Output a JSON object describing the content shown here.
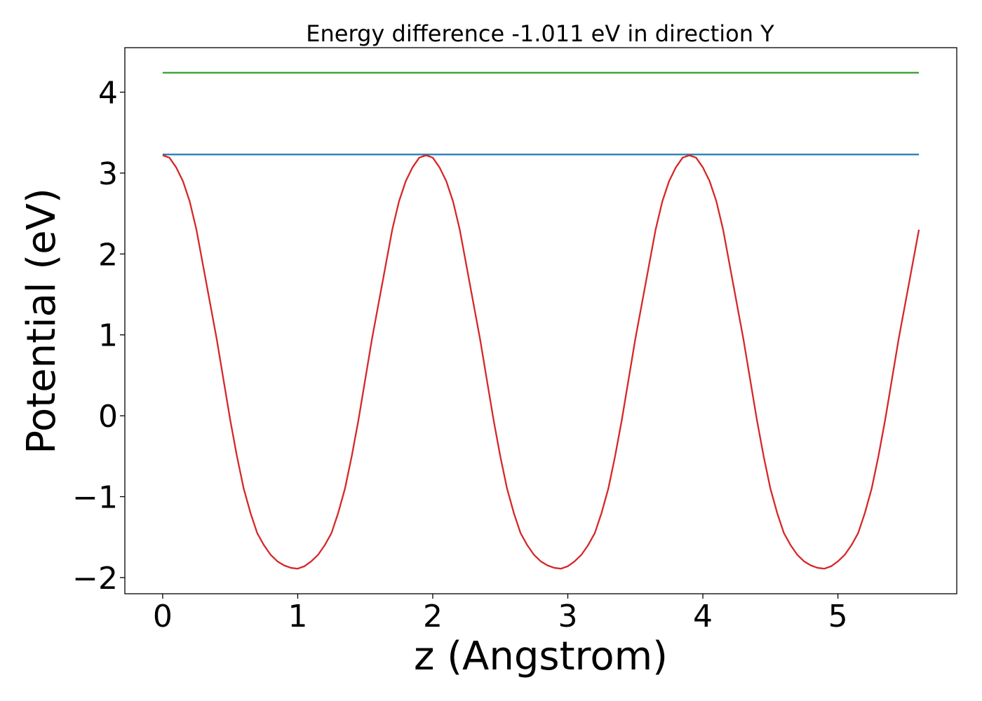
{
  "chart_data": {
    "type": "line",
    "title": "Energy difference -1.011 eV in direction Y",
    "xlabel": "z (Angstrom)",
    "ylabel": "Potential (eV)",
    "xlim": [
      -0.28,
      5.88
    ],
    "ylim": [
      -2.2,
      4.55
    ],
    "xticks": [
      0,
      1,
      2,
      3,
      4,
      5
    ],
    "yticks": [
      -2,
      -1,
      0,
      1,
      2,
      3,
      4
    ],
    "xtick_labels": [
      "0",
      "1",
      "2",
      "3",
      "4",
      "5"
    ],
    "ytick_labels": [
      "−2",
      "−1",
      "0",
      "1",
      "2",
      "3",
      "4"
    ],
    "grid": false,
    "series": [
      {
        "color": "#2ca02c",
        "x": [
          0,
          5.6
        ],
        "y": [
          4.24,
          4.24
        ]
      },
      {
        "color": "#1f77b4",
        "x": [
          0,
          5.6
        ],
        "y": [
          3.23,
          3.23
        ]
      },
      {
        "color": "#d62728",
        "x": [
          0,
          0.05,
          0.1,
          0.15,
          0.2,
          0.25,
          0.3,
          0.35,
          0.4,
          0.45,
          0.5,
          0.55,
          0.6,
          0.65,
          0.7,
          0.75,
          0.8,
          0.85,
          0.9,
          0.95,
          1.0,
          1.05,
          1.1,
          1.15,
          1.2,
          1.25,
          1.3,
          1.35,
          1.4,
          1.45,
          1.5,
          1.55,
          1.6,
          1.65,
          1.7,
          1.75,
          1.8,
          1.85,
          1.9,
          1.95,
          2.0,
          2.05,
          2.1,
          2.15,
          2.2,
          2.25,
          2.3,
          2.35,
          2.4,
          2.45,
          2.5,
          2.55,
          2.6,
          2.65,
          2.7,
          2.75,
          2.8,
          2.85,
          2.9,
          2.95,
          3.0,
          3.05,
          3.1,
          3.15,
          3.2,
          3.25,
          3.3,
          3.35,
          3.4,
          3.45,
          3.5,
          3.55,
          3.6,
          3.65,
          3.7,
          3.75,
          3.8,
          3.85,
          3.9,
          3.95,
          4.0,
          4.05,
          4.1,
          4.15,
          4.2,
          4.25,
          4.3,
          4.35,
          4.4,
          4.45,
          4.5,
          4.55,
          4.6,
          4.65,
          4.7,
          4.75,
          4.8,
          4.85,
          4.9,
          4.95,
          5.0,
          5.05,
          5.1,
          5.15,
          5.2,
          5.25,
          5.3,
          5.35,
          5.4,
          5.45,
          5.5,
          5.55,
          5.6
        ],
        "y": [
          3.22,
          3.19,
          3.07,
          2.9,
          2.65,
          2.3,
          1.85,
          1.4,
          0.95,
          0.45,
          -0.05,
          -0.5,
          -0.9,
          -1.2,
          -1.45,
          -1.6,
          -1.72,
          -1.8,
          -1.85,
          -1.88,
          -1.89,
          -1.86,
          -1.8,
          -1.72,
          -1.6,
          -1.45,
          -1.2,
          -0.9,
          -0.5,
          -0.05,
          0.45,
          0.95,
          1.4,
          1.85,
          2.3,
          2.65,
          2.9,
          3.07,
          3.19,
          3.22,
          3.19,
          3.07,
          2.9,
          2.65,
          2.3,
          1.85,
          1.4,
          0.95,
          0.45,
          -0.05,
          -0.5,
          -0.9,
          -1.2,
          -1.45,
          -1.6,
          -1.72,
          -1.8,
          -1.85,
          -1.88,
          -1.89,
          -1.86,
          -1.8,
          -1.72,
          -1.6,
          -1.45,
          -1.2,
          -0.9,
          -0.5,
          -0.05,
          0.45,
          0.95,
          1.4,
          1.85,
          2.3,
          2.65,
          2.9,
          3.07,
          3.19,
          3.22,
          3.19,
          3.07,
          2.9,
          2.65,
          2.3,
          1.85,
          1.4,
          0.95,
          0.45,
          -0.05,
          -0.5,
          -0.9,
          -1.2,
          -1.45,
          -1.6,
          -1.72,
          -1.8,
          -1.85,
          -1.88,
          -1.89,
          -1.86,
          -1.8,
          -1.72,
          -1.6,
          -1.45,
          -1.2,
          -0.9,
          -0.5,
          -0.05,
          0.45,
          0.95,
          1.4,
          1.85,
          2.3
        ]
      }
    ]
  }
}
